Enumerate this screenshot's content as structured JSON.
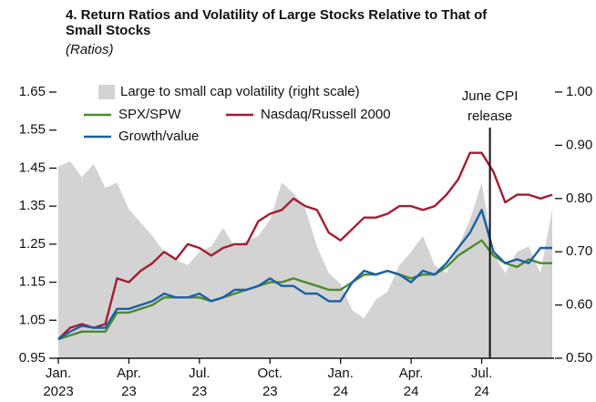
{
  "chart_data": {
    "type": "line",
    "title": "4. Return Ratios and Volatility of Large Stocks Relative to That of Small Stocks",
    "subtitle": "(Ratios)",
    "x": [
      0,
      0.5,
      1,
      1.5,
      2,
      2.5,
      3,
      3.5,
      4,
      4.5,
      5,
      5.5,
      6,
      6.5,
      7,
      7.5,
      8,
      8.5,
      9,
      9.5,
      10,
      10.5,
      11,
      11.5,
      12,
      12.5,
      13,
      13.5,
      14,
      14.5,
      15,
      15.5,
      16,
      16.5,
      17,
      17.5,
      18,
      18.5,
      19,
      19.5,
      20,
      20.5,
      21
    ],
    "series": [
      {
        "name": "Large to small cap volatility (right scale)",
        "type": "area",
        "axis": "y2",
        "color": "#d3d3d3",
        "values": [
          0.86,
          0.87,
          0.84,
          0.865,
          0.82,
          0.83,
          0.78,
          0.755,
          0.73,
          0.7,
          0.685,
          0.675,
          0.7,
          0.71,
          0.745,
          0.71,
          0.72,
          0.73,
          0.76,
          0.83,
          0.81,
          0.78,
          0.71,
          0.66,
          0.64,
          0.59,
          0.575,
          0.61,
          0.625,
          0.675,
          0.7,
          0.73,
          0.675,
          0.66,
          0.71,
          0.76,
          0.83,
          0.695,
          0.66,
          0.7,
          0.71,
          0.66,
          0.78
        ]
      },
      {
        "name": "SPX/SPW",
        "color": "#4a8a2e",
        "values": [
          1.0,
          1.01,
          1.02,
          1.02,
          1.02,
          1.07,
          1.07,
          1.08,
          1.09,
          1.11,
          1.11,
          1.11,
          1.11,
          1.1,
          1.11,
          1.12,
          1.13,
          1.14,
          1.15,
          1.15,
          1.16,
          1.15,
          1.14,
          1.13,
          1.13,
          1.15,
          1.17,
          1.17,
          1.18,
          1.17,
          1.16,
          1.17,
          1.17,
          1.19,
          1.22,
          1.24,
          1.26,
          1.22,
          1.2,
          1.19,
          1.21,
          1.2,
          1.2
        ]
      },
      {
        "name": "Nasdaq/Russell 2000",
        "color": "#a51c30",
        "values": [
          1.0,
          1.03,
          1.04,
          1.03,
          1.04,
          1.16,
          1.15,
          1.18,
          1.2,
          1.23,
          1.21,
          1.25,
          1.24,
          1.22,
          1.24,
          1.25,
          1.25,
          1.31,
          1.33,
          1.34,
          1.37,
          1.35,
          1.34,
          1.28,
          1.26,
          1.29,
          1.32,
          1.32,
          1.33,
          1.35,
          1.35,
          1.34,
          1.35,
          1.38,
          1.42,
          1.49,
          1.49,
          1.44,
          1.36,
          1.38,
          1.38,
          1.37,
          1.38
        ]
      },
      {
        "name": "Growth/value",
        "color": "#1a5fa8",
        "values": [
          1.0,
          1.02,
          1.035,
          1.03,
          1.03,
          1.08,
          1.08,
          1.09,
          1.1,
          1.12,
          1.11,
          1.11,
          1.12,
          1.1,
          1.11,
          1.13,
          1.13,
          1.14,
          1.16,
          1.14,
          1.14,
          1.12,
          1.12,
          1.1,
          1.1,
          1.15,
          1.18,
          1.17,
          1.18,
          1.17,
          1.15,
          1.18,
          1.17,
          1.2,
          1.24,
          1.28,
          1.34,
          1.23,
          1.2,
          1.21,
          1.2,
          1.24,
          1.24
        ]
      }
    ],
    "xlim": [
      0,
      21
    ],
    "xticks": [
      {
        "value": 0,
        "label": "Jan.",
        "year": "2023"
      },
      {
        "value": 3,
        "label": "Apr.",
        "year": "23"
      },
      {
        "value": 6,
        "label": "Jul.",
        "year": "23"
      },
      {
        "value": 9,
        "label": "Oct.",
        "year": "23"
      },
      {
        "value": 12,
        "label": "Jan.",
        "year": "24"
      },
      {
        "value": 15,
        "label": "Apr.",
        "year": "24"
      },
      {
        "value": 18,
        "label": "Jul.",
        "year": "24"
      }
    ],
    "ylim": [
      0.95,
      1.65
    ],
    "yticks": [
      0.95,
      1.05,
      1.15,
      1.25,
      1.35,
      1.45,
      1.55,
      1.65
    ],
    "y2lim": [
      0.5,
      1.0
    ],
    "y2ticks": [
      {
        "value": 0.5,
        "label": "0.50"
      },
      {
        "value": 0.6,
        "label": "0.60"
      },
      {
        "value": 0.7,
        "label": "0.70"
      },
      {
        "value": 0.8,
        "label": "0.80"
      },
      {
        "value": 0.9,
        "label": "0.90"
      },
      {
        "value": 1.0,
        "label": "1.00"
      }
    ],
    "annotation": {
      "x": 18.35,
      "lines": [
        "June CPI",
        "release"
      ]
    }
  }
}
